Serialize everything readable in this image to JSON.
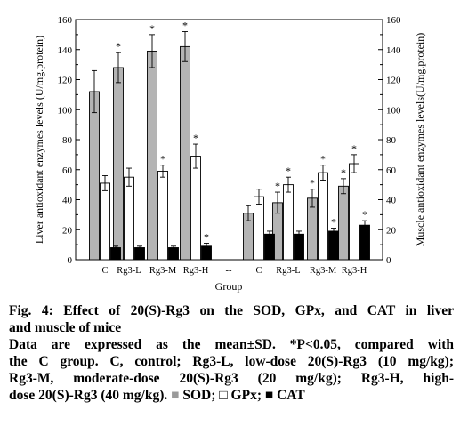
{
  "chart_data": {
    "type": "bar",
    "categories": [
      "C",
      "Rg3-L",
      "Rg3-M",
      "Rg3-H",
      "--",
      "C",
      "Rg3-L",
      "Rg3-M",
      "Rg3-H"
    ],
    "xlabel": "Group",
    "ylabel_left": "Liver antioxidant enzymes  levels (U/mg.protein)",
    "ylabel_right": "Muscle antioxidant enzymes  levels(U/mg.protein)",
    "ylim": [
      0,
      160
    ],
    "yticks": [
      "0",
      "20",
      "40",
      "60",
      "80",
      "100",
      "120",
      "140",
      "160"
    ],
    "series": [
      {
        "name": "SOD",
        "color": "#b4b4b4",
        "values": [
          112,
          128,
          139,
          142,
          null,
          31,
          38,
          41,
          49
        ],
        "errors": [
          14,
          10,
          11,
          10,
          null,
          5,
          7,
          6,
          5
        ],
        "significance": [
          "",
          "*",
          "*",
          "*",
          "",
          "",
          "*",
          "*",
          "*"
        ]
      },
      {
        "name": "GPx",
        "color": "#ffffff",
        "values": [
          51,
          55,
          59,
          69,
          null,
          42,
          50,
          58,
          64
        ],
        "errors": [
          5,
          6,
          4,
          8,
          null,
          5,
          5,
          5,
          6
        ],
        "significance": [
          "",
          "",
          "*",
          "*",
          "",
          "",
          "*",
          "*",
          "*"
        ]
      },
      {
        "name": "CAT",
        "color": "#000000",
        "values": [
          8,
          8,
          8,
          9,
          null,
          17,
          17,
          19,
          23
        ],
        "errors": [
          1,
          1,
          1,
          2,
          null,
          2,
          2,
          2,
          3
        ],
        "significance": [
          "",
          "",
          "",
          "*",
          "",
          "",
          "",
          "*",
          "*"
        ]
      }
    ]
  },
  "caption": {
    "title_line1": "Fig. 4: Effect of 20(S)-Rg3 on the SOD, GPx, and CAT in liver",
    "title_line2": "and muscle of mice",
    "body_line1": "Data are expressed as the mean±SD. *P<0.05, compared with",
    "body_line2": "the C group. C, control; Rg3-L, low-dose 20(S)-Rg3 (10 mg/kg);",
    "body_line3": "Rg3-M, moderate-dose 20(S)-Rg3 (20 mg/kg); Rg3-H, high-",
    "body_line4_text": "dose 20(S)-Rg3 (40 mg/kg).",
    "legend_sod_symbol": "■",
    "legend_sod": "SOD;",
    "legend_gpx_symbol": "□",
    "legend_gpx": "GPx;",
    "legend_cat_symbol": "■",
    "legend_cat": "CAT"
  }
}
